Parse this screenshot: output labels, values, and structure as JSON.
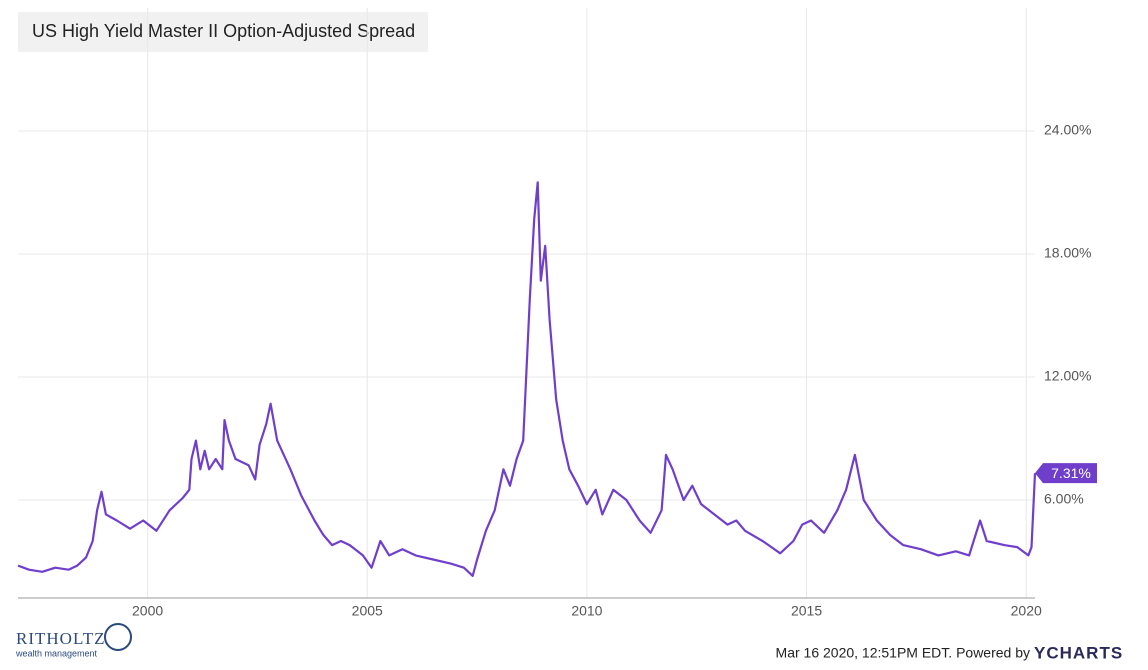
{
  "chart_data": {
    "type": "line",
    "title": "US High Yield Master II Option-Adjusted Spread",
    "x": [
      1997.05,
      1997.3,
      1997.6,
      1997.9,
      1998.2,
      1998.4,
      1998.6,
      1998.75,
      1998.85,
      1998.95,
      1999.05,
      1999.3,
      1999.6,
      1999.9,
      2000.2,
      2000.5,
      2000.8,
      2000.95,
      2001.0,
      2001.1,
      2001.2,
      2001.3,
      2001.4,
      2001.55,
      2001.7,
      2001.75,
      2001.85,
      2002.0,
      2002.3,
      2002.45,
      2002.55,
      2002.7,
      2002.8,
      2002.95,
      2003.1,
      2003.25,
      2003.5,
      2003.8,
      2004.0,
      2004.2,
      2004.4,
      2004.6,
      2004.9,
      2005.1,
      2005.3,
      2005.5,
      2005.8,
      2006.1,
      2006.5,
      2006.9,
      2007.2,
      2007.4,
      2007.5,
      2007.7,
      2007.9,
      2008.1,
      2008.25,
      2008.4,
      2008.55,
      2008.7,
      2008.8,
      2008.88,
      2008.95,
      2009.05,
      2009.15,
      2009.3,
      2009.45,
      2009.6,
      2009.8,
      2010.0,
      2010.2,
      2010.35,
      2010.6,
      2010.9,
      2011.2,
      2011.45,
      2011.7,
      2011.8,
      2011.95,
      2012.2,
      2012.4,
      2012.6,
      2012.9,
      2013.2,
      2013.4,
      2013.6,
      2014.0,
      2014.4,
      2014.7,
      2014.9,
      2015.1,
      2015.4,
      2015.7,
      2015.9,
      2016.1,
      2016.3,
      2016.6,
      2016.9,
      2017.2,
      2017.6,
      2018.0,
      2018.4,
      2018.7,
      2018.95,
      2019.1,
      2019.5,
      2019.8,
      2020.05,
      2020.12,
      2020.2
    ],
    "series": [
      {
        "name": "US High Yield Master II Option-Adjusted Spread",
        "color": "#6f3fcc",
        "values": [
          2.8,
          2.6,
          2.5,
          2.7,
          2.6,
          2.8,
          3.2,
          4.0,
          5.5,
          6.4,
          5.3,
          5.0,
          4.6,
          5.0,
          4.5,
          5.5,
          6.1,
          6.5,
          8.0,
          8.9,
          7.5,
          8.4,
          7.5,
          8.0,
          7.5,
          9.9,
          8.9,
          8.0,
          7.7,
          7.0,
          8.7,
          9.7,
          10.7,
          8.9,
          8.2,
          7.5,
          6.2,
          5.0,
          4.3,
          3.8,
          4.0,
          3.8,
          3.3,
          2.7,
          4.0,
          3.3,
          3.6,
          3.3,
          3.1,
          2.9,
          2.7,
          2.3,
          3.1,
          4.5,
          5.5,
          7.5,
          6.7,
          8.0,
          8.9,
          15.8,
          19.7,
          21.5,
          16.7,
          18.4,
          14.8,
          10.9,
          8.9,
          7.5,
          6.7,
          5.8,
          6.5,
          5.3,
          6.5,
          6.0,
          5.0,
          4.4,
          5.5,
          8.2,
          7.5,
          6.0,
          6.7,
          5.8,
          5.3,
          4.8,
          5.0,
          4.5,
          4.0,
          3.4,
          4.0,
          4.8,
          5.0,
          4.4,
          5.5,
          6.5,
          8.2,
          6.0,
          5.0,
          4.3,
          3.8,
          3.6,
          3.3,
          3.5,
          3.3,
          5.0,
          4.0,
          3.8,
          3.7,
          3.3,
          3.7,
          7.31
        ]
      }
    ],
    "xlim": [
      1997.05,
      2020.2
    ],
    "xticks": [
      2000,
      2005,
      2010,
      2015,
      2020
    ],
    "ylim": [
      1.22,
      30
    ],
    "yticks": [
      {
        "value": 6,
        "label": "6.00%"
      },
      {
        "value": 12,
        "label": "12.00%"
      },
      {
        "value": 18,
        "label": "18.00%"
      },
      {
        "value": 24,
        "label": "24.00%"
      }
    ],
    "grid": true,
    "annotations": [
      {
        "x": 2020.2,
        "y": 7.31,
        "label": "7.31%"
      }
    ],
    "source": "Mar 16 2020, 12:51PM EDT. Powered by"
  },
  "branding": {
    "logo": "RITHOLTZ",
    "tagline": "wealth management",
    "provider": "YCHARTS"
  }
}
